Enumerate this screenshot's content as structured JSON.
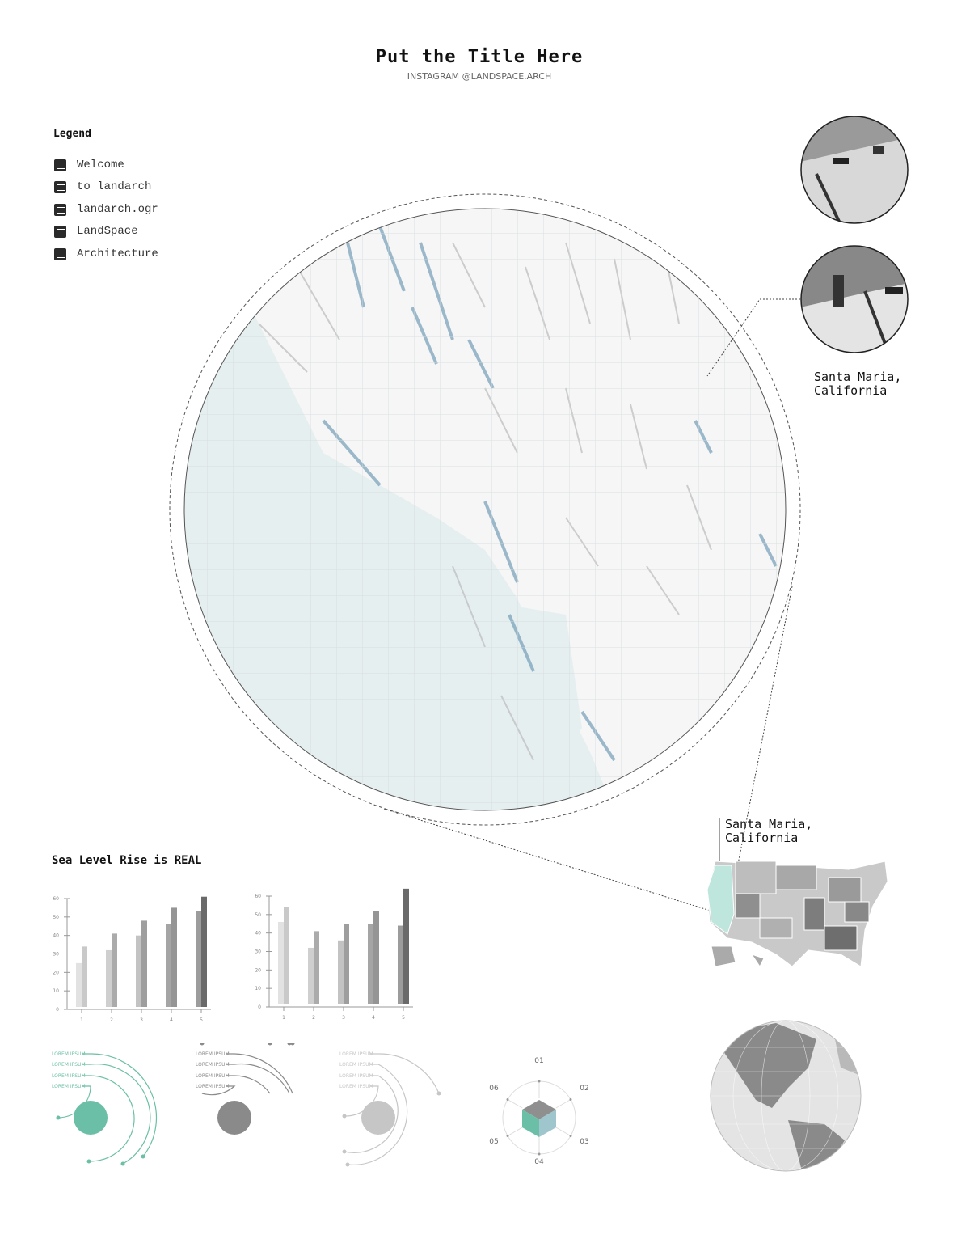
{
  "header": {
    "title": "Put the Title Here",
    "subtitle": "INSTAGRAM @LANDSPACE.ARCH"
  },
  "legend": {
    "title": "Legend",
    "items": [
      {
        "label": "Welcome",
        "icon": "photo-icon"
      },
      {
        "label": "to landarch",
        "icon": "photo-icon"
      },
      {
        "label": "landarch.ogr",
        "icon": "building-icon"
      },
      {
        "label": "LandSpace",
        "icon": "building-icon"
      },
      {
        "label": "Architecture",
        "icon": "photo-icon"
      }
    ]
  },
  "callout": {
    "location_line1": "Santa Maria,",
    "location_line2": "California"
  },
  "us_map": {
    "location_line1": "Santa Maria,",
    "location_line2": "California",
    "highlight_color": "#bfe6dc"
  },
  "section": {
    "title": "Sea Level Rise is REAL"
  },
  "chart_data": [
    {
      "type": "bar",
      "categories": [
        "1",
        "2",
        "3",
        "4",
        "5"
      ],
      "ylim": [
        0,
        60
      ],
      "yticks": [
        0,
        10,
        20,
        30,
        40,
        50,
        60
      ],
      "series": [
        {
          "values": [
            25,
            32,
            40,
            46,
            53
          ]
        },
        {
          "values": [
            34,
            41,
            48,
            55,
            61
          ]
        }
      ]
    },
    {
      "type": "bar",
      "categories": [
        "1",
        "2",
        "3",
        "4",
        "5"
      ],
      "ylim": [
        0,
        60
      ],
      "yticks": [
        0,
        10,
        20,
        30,
        40,
        50,
        60
      ],
      "series": [
        {
          "values": [
            46,
            32,
            36,
            45,
            44
          ]
        },
        {
          "values": [
            54,
            41,
            45,
            52,
            64
          ]
        }
      ]
    }
  ],
  "infographics": {
    "orbits": [
      {
        "color": "#6bbfa6",
        "labels": [
          "LOREM IPSUM",
          "LOREM IPSUM",
          "LOREM IPSUM",
          "LOREM IPSUM"
        ]
      },
      {
        "color": "#8a8a8a",
        "labels": [
          "LOREM IPSUM",
          "LOREM IPSUM",
          "LOREM IPSUM",
          "LOREM IPSUM"
        ]
      },
      {
        "color": "#c6c6c6",
        "labels": [
          "LOREM IPSUM",
          "LOREM IPSUM",
          "LOREM IPSUM",
          "LOREM IPSUM"
        ]
      }
    ],
    "hexagon": {
      "labels": [
        "01",
        "02",
        "03",
        "04",
        "05",
        "06"
      ],
      "colors": {
        "top": "#8f8f8f",
        "left": "#6bbfa6",
        "right": "#9ec6cc"
      }
    }
  },
  "colors": {
    "sea": "#e6eff0",
    "relief_accent": "#5f8fae"
  }
}
